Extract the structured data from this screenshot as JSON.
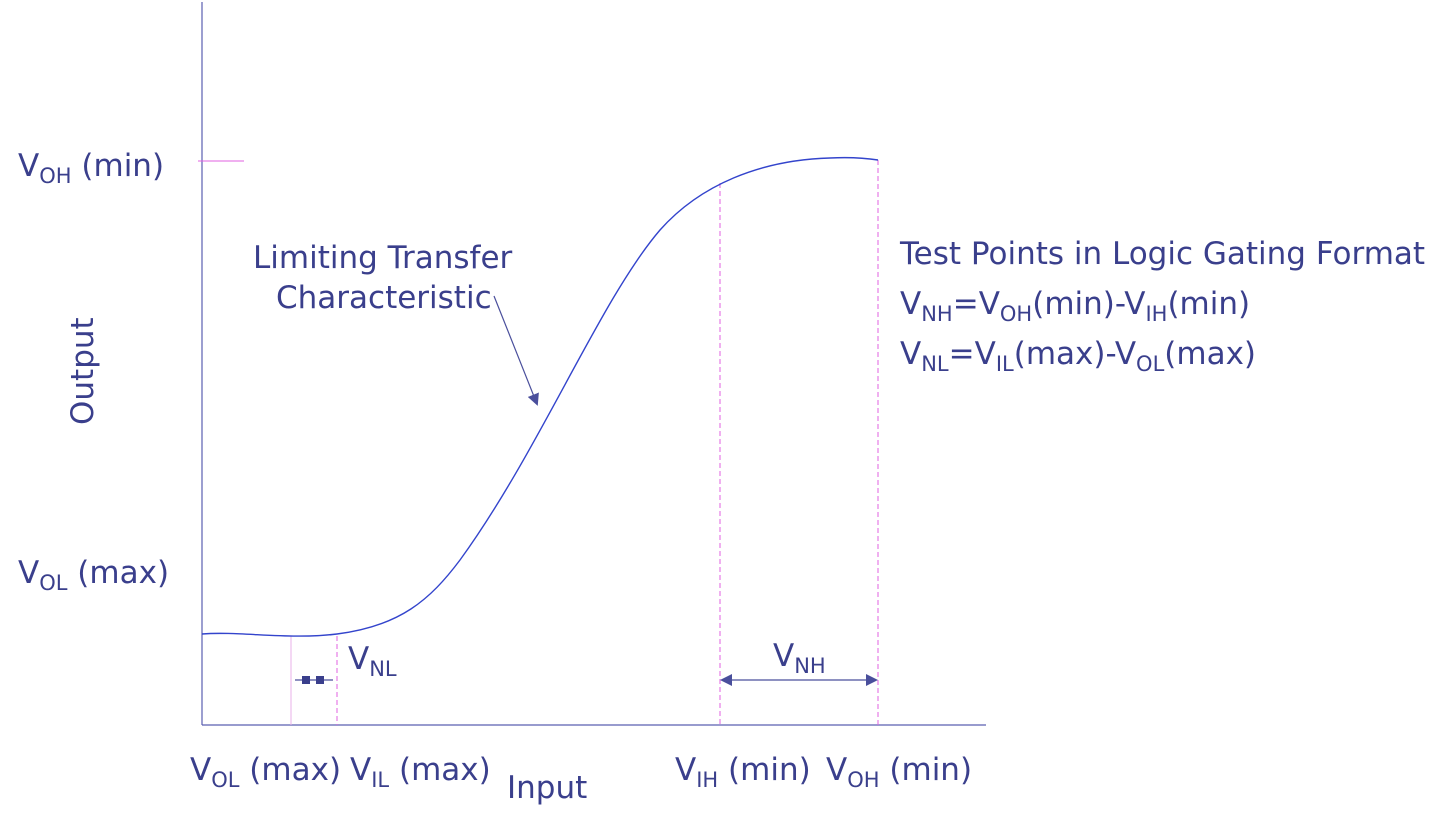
{
  "diagram": {
    "title_right": {
      "heading": "Test Points in Logic Gating Format",
      "eq_nh": {
        "a": "V",
        "a_sub": "NH",
        "b": "=V",
        "b_sub": "OH",
        "c": "(min)-V",
        "c_sub": "IH",
        "d": "(min)"
      },
      "eq_nl": {
        "a": "V",
        "a_sub": "NL",
        "b": "=V",
        "b_sub": "IL",
        "c": "(max)-V",
        "c_sub": "OL",
        "d": "(max)"
      }
    },
    "curve_annotation": {
      "line1": "Limiting Transfer",
      "line2": "Characteristic"
    },
    "axes": {
      "y_label": "Output",
      "x_label": "Input",
      "y_ticks": {
        "voh_min": {
          "v": "V",
          "sub": "OH",
          "rest": " (min)"
        },
        "vol_max": {
          "v": "V",
          "sub": "OL",
          "rest": " (max)"
        }
      },
      "x_ticks": {
        "vol_max": {
          "v": "V",
          "sub": "OL",
          "rest": " (max)"
        },
        "vil_max": {
          "v": "V",
          "sub": "IL",
          "rest": " (max)"
        },
        "vih_min": {
          "v": "V",
          "sub": "IH",
          "rest": " (min)"
        },
        "voh_min": {
          "v": "V",
          "sub": "OH",
          "rest": " (min)"
        }
      }
    },
    "margins": {
      "vnl": {
        "v": "V",
        "sub": "NL"
      },
      "vnh": {
        "v": "V",
        "sub": "NH"
      }
    },
    "colors": {
      "text": "#3a3f8c",
      "axis": "#5a5fb0",
      "curve": "#3344cc",
      "guide": "#e060e0"
    }
  }
}
